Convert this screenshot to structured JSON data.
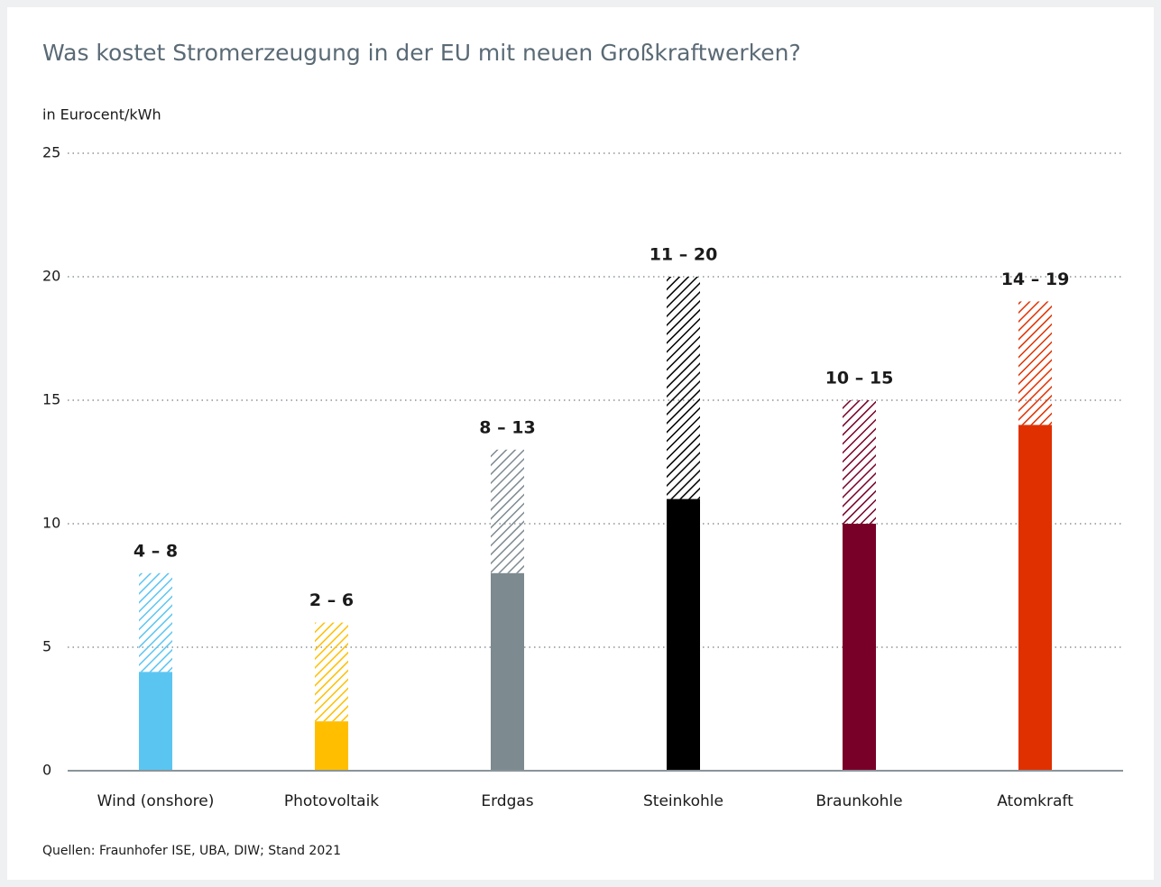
{
  "chart_data": {
    "type": "range_bar",
    "title": "Was kostet Stromerzeugung in der EU mit neuen Großkraftwerken?",
    "y_label": "in Eurocent/kWh",
    "source": "Quellen: Fraunhofer ISE, UBA, DIW; Stand 2021",
    "categories": [
      "Wind (onshore)",
      "Photovoltaik",
      "Erdgas",
      "Steinkohle",
      "Braunkohle",
      "Atomkraft"
    ],
    "low": [
      4,
      2,
      8,
      11,
      10,
      14
    ],
    "high": [
      8,
      6,
      13,
      20,
      15,
      19
    ],
    "value_labels": [
      "4 – 8",
      "2 – 6",
      "8 – 13",
      "11 – 20",
      "10 – 15",
      "14 – 19"
    ],
    "colors": [
      "#5bc5f2",
      "#ffbf00",
      "#7d8a90",
      "#000000",
      "#780028",
      "#e03000"
    ],
    "ylim": [
      0,
      25
    ],
    "yticks": [
      0,
      5,
      10,
      15,
      20,
      25
    ],
    "grid": true
  }
}
